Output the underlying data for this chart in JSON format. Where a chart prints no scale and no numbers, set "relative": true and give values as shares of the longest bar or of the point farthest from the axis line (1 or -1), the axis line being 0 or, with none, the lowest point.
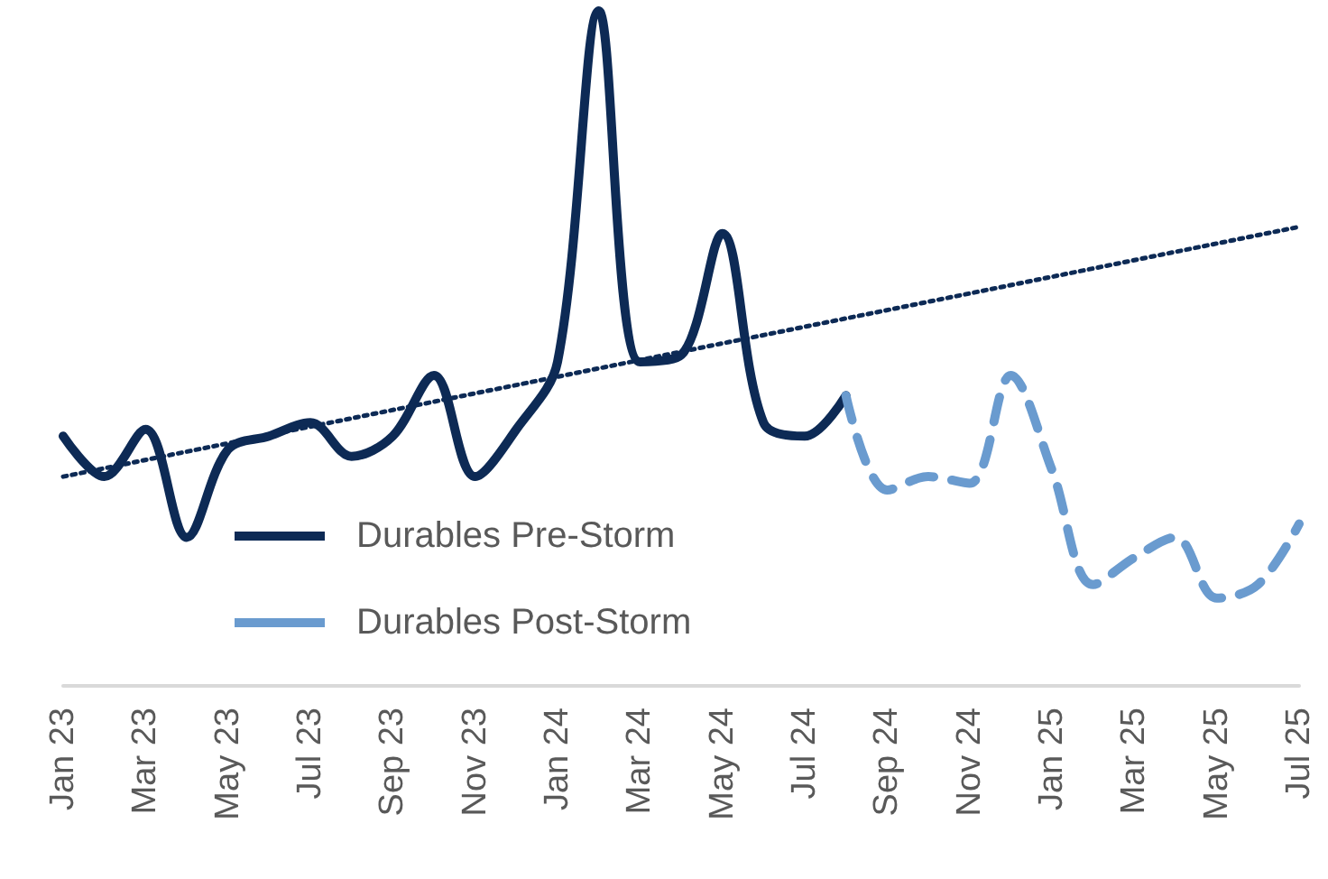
{
  "chart_data": {
    "type": "line",
    "relative": true,
    "categories": [
      "Jan 23",
      null,
      "Mar 23",
      null,
      "May 23",
      null,
      "Jul 23",
      null,
      "Sep 23",
      null,
      "Nov 23",
      null,
      "Jan 24",
      null,
      "Mar 24",
      null,
      "May 24",
      null,
      "Jul 24",
      null,
      "Sep 24",
      null,
      "Nov 24",
      null,
      "Jan 25",
      null,
      "Mar 25",
      null,
      "May 25",
      null,
      "Jul 25"
    ],
    "series": [
      {
        "name": "Durables Pre-Storm",
        "color": "#0d2a55",
        "line_style": "solid",
        "values": [
          0.37,
          0.31,
          0.38,
          0.22,
          0.35,
          0.37,
          0.39,
          0.34,
          0.37,
          0.46,
          0.31,
          0.38,
          0.48,
          1.0,
          0.48,
          0.49,
          0.67,
          0.39,
          0.37,
          0.43,
          null,
          null,
          null,
          null,
          null,
          null,
          null,
          null,
          null,
          null,
          null
        ]
      },
      {
        "name": "Durables Post-Storm",
        "color": "#6a9bcf",
        "line_style": "dashed",
        "values": [
          null,
          null,
          null,
          null,
          null,
          null,
          null,
          null,
          null,
          null,
          null,
          null,
          null,
          null,
          null,
          null,
          null,
          null,
          null,
          0.43,
          0.29,
          0.31,
          0.3,
          0.46,
          0.32,
          0.15,
          0.19,
          0.22,
          0.13,
          0.15,
          0.24
        ]
      },
      {
        "color": "#0d2a55",
        "line_style": "dotted",
        "x": [
          "Jan 23",
          "Jul 25"
        ],
        "values": [
          0.31,
          0.68
        ]
      }
    ],
    "legend": "bottom left",
    "marker": "none",
    "grid": false
  }
}
